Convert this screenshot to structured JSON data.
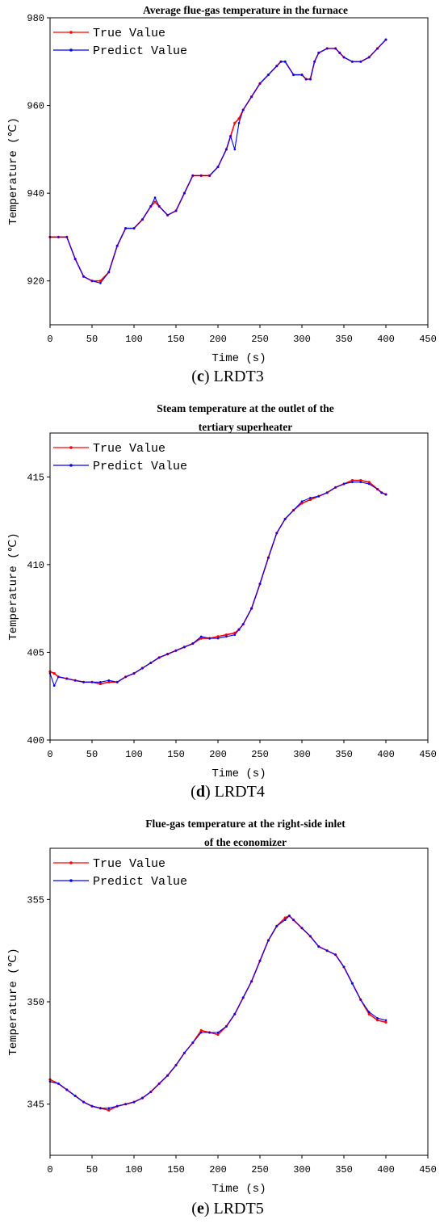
{
  "chart_data": [
    {
      "type": "line",
      "title_lines": [
        "Average flue-gas temperature in the furnace"
      ],
      "xlabel": "Time (s)",
      "ylabel": "Temperature (℃)",
      "xlim": [
        0,
        450
      ],
      "ylim": [
        910,
        980
      ],
      "xticks": [
        0,
        50,
        100,
        150,
        200,
        250,
        300,
        350,
        400,
        450
      ],
      "yticks": [
        920,
        940,
        960,
        980
      ],
      "legend_position": "top-left",
      "caption": {
        "open": "(",
        "letter": "c",
        "rest": ") LRDT3"
      },
      "x": [
        0,
        10,
        20,
        30,
        40,
        50,
        60,
        70,
        80,
        90,
        100,
        110,
        120,
        125,
        130,
        140,
        150,
        160,
        170,
        180,
        190,
        200,
        210,
        215,
        220,
        225,
        230,
        240,
        250,
        260,
        270,
        275,
        280,
        290,
        300,
        305,
        310,
        315,
        320,
        330,
        340,
        345,
        350,
        360,
        370,
        380,
        390,
        400
      ],
      "series": [
        {
          "name": "True Value",
          "color": "#ff0000",
          "values": [
            930,
            930,
            930,
            925,
            921,
            920,
            920,
            922,
            928,
            932,
            932,
            934,
            937,
            938,
            937,
            935,
            936,
            940,
            944,
            944,
            944,
            946,
            950,
            953,
            956,
            957,
            959,
            962,
            965,
            967,
            969,
            970,
            970,
            967,
            967,
            966,
            966,
            970,
            972,
            973,
            973,
            972,
            971,
            970,
            970,
            971,
            973,
            975
          ]
        },
        {
          "name": "Predict Value",
          "color": "#0000ff",
          "values": [
            930,
            930,
            930,
            925,
            921,
            920,
            919.5,
            922,
            928,
            932,
            932,
            934,
            937,
            939,
            937,
            935,
            936,
            940,
            944,
            944,
            944,
            946,
            950,
            953,
            950,
            956,
            959,
            962,
            965,
            967,
            969,
            970,
            970,
            967,
            967,
            966,
            966,
            970,
            972,
            973,
            973,
            972,
            971,
            970,
            970,
            971,
            973,
            975
          ]
        }
      ]
    },
    {
      "type": "line",
      "title_lines": [
        "Steam temperature at the outlet of the",
        "tertiary superheater"
      ],
      "xlabel": "Time (s)",
      "ylabel": "Temperature (℃)",
      "xlim": [
        0,
        450
      ],
      "ylim": [
        400,
        417.5
      ],
      "xticks": [
        0,
        50,
        100,
        150,
        200,
        250,
        300,
        350,
        400,
        450
      ],
      "yticks": [
        400,
        405,
        410,
        415
      ],
      "legend_position": "top-left",
      "caption": {
        "open": "(",
        "letter": "d",
        "rest": ") LRDT4"
      },
      "x": [
        0,
        5,
        10,
        20,
        30,
        40,
        50,
        60,
        70,
        80,
        90,
        100,
        110,
        120,
        130,
        140,
        150,
        160,
        170,
        180,
        190,
        200,
        210,
        220,
        225,
        230,
        240,
        250,
        260,
        270,
        280,
        290,
        300,
        310,
        320,
        330,
        340,
        350,
        360,
        370,
        380,
        390,
        395,
        400
      ],
      "series": [
        {
          "name": "True Value",
          "color": "#ff0000",
          "values": [
            403.9,
            403.8,
            403.6,
            403.5,
            403.4,
            403.3,
            403.3,
            403.2,
            403.3,
            403.3,
            403.6,
            403.8,
            404.1,
            404.4,
            404.7,
            404.9,
            405.1,
            405.3,
            405.5,
            405.8,
            405.8,
            405.9,
            406.0,
            406.1,
            406.3,
            406.6,
            407.5,
            408.9,
            410.4,
            411.8,
            412.6,
            413.1,
            413.5,
            413.7,
            413.9,
            414.1,
            414.4,
            414.6,
            414.8,
            414.8,
            414.7,
            414.3,
            414.1,
            414.0
          ]
        },
        {
          "name": "Predict Value",
          "color": "#0000ff",
          "values": [
            403.8,
            403.1,
            403.6,
            403.5,
            403.4,
            403.3,
            403.3,
            403.3,
            403.4,
            403.3,
            403.6,
            403.8,
            404.1,
            404.4,
            404.7,
            404.9,
            405.1,
            405.3,
            405.5,
            405.9,
            405.8,
            405.8,
            405.9,
            406.0,
            406.3,
            406.6,
            407.5,
            408.9,
            410.4,
            411.8,
            412.6,
            413.1,
            413.6,
            413.8,
            413.9,
            414.1,
            414.4,
            414.6,
            414.7,
            414.7,
            414.6,
            414.3,
            414.1,
            414.0
          ]
        }
      ]
    },
    {
      "type": "line",
      "title_lines": [
        "Flue-gas temperature at the right-side inlet",
        "of the economizer"
      ],
      "xlabel": "Time (s)",
      "ylabel": "Temperature (℃)",
      "xlim": [
        0,
        450
      ],
      "ylim": [
        342.5,
        357.5
      ],
      "xticks": [
        0,
        50,
        100,
        150,
        200,
        250,
        300,
        350,
        400,
        450
      ],
      "yticks": [
        345,
        350,
        355
      ],
      "legend_position": "top-left",
      "caption": {
        "open": "(",
        "letter": "e",
        "rest": ") LRDT5"
      },
      "x": [
        0,
        10,
        20,
        30,
        40,
        50,
        60,
        70,
        80,
        90,
        100,
        110,
        120,
        130,
        140,
        150,
        160,
        170,
        180,
        190,
        200,
        210,
        220,
        230,
        240,
        250,
        260,
        270,
        280,
        285,
        290,
        300,
        310,
        320,
        330,
        340,
        350,
        360,
        370,
        380,
        390,
        400
      ],
      "series": [
        {
          "name": "True Value",
          "color": "#ff0000",
          "values": [
            346.2,
            346.0,
            345.7,
            345.4,
            345.1,
            344.9,
            344.8,
            344.7,
            344.9,
            345.0,
            345.1,
            345.3,
            345.6,
            346.0,
            346.4,
            346.9,
            347.5,
            348.0,
            348.6,
            348.5,
            348.4,
            348.8,
            349.4,
            350.2,
            351.0,
            352.0,
            353.0,
            353.7,
            354.1,
            354.2,
            354.0,
            353.6,
            353.2,
            352.7,
            352.5,
            352.3,
            351.7,
            350.9,
            350.1,
            349.4,
            349.1,
            349.0
          ]
        },
        {
          "name": "Predict Value",
          "color": "#0000ff",
          "values": [
            346.1,
            346.0,
            345.7,
            345.4,
            345.1,
            344.9,
            344.8,
            344.8,
            344.9,
            345.0,
            345.1,
            345.3,
            345.6,
            346.0,
            346.4,
            346.9,
            347.5,
            348.0,
            348.5,
            348.5,
            348.5,
            348.8,
            349.4,
            350.2,
            351.0,
            352.0,
            353.0,
            353.7,
            354.0,
            354.2,
            354.0,
            353.6,
            353.2,
            352.7,
            352.5,
            352.3,
            351.7,
            350.9,
            350.1,
            349.5,
            349.2,
            349.1
          ]
        }
      ]
    }
  ]
}
